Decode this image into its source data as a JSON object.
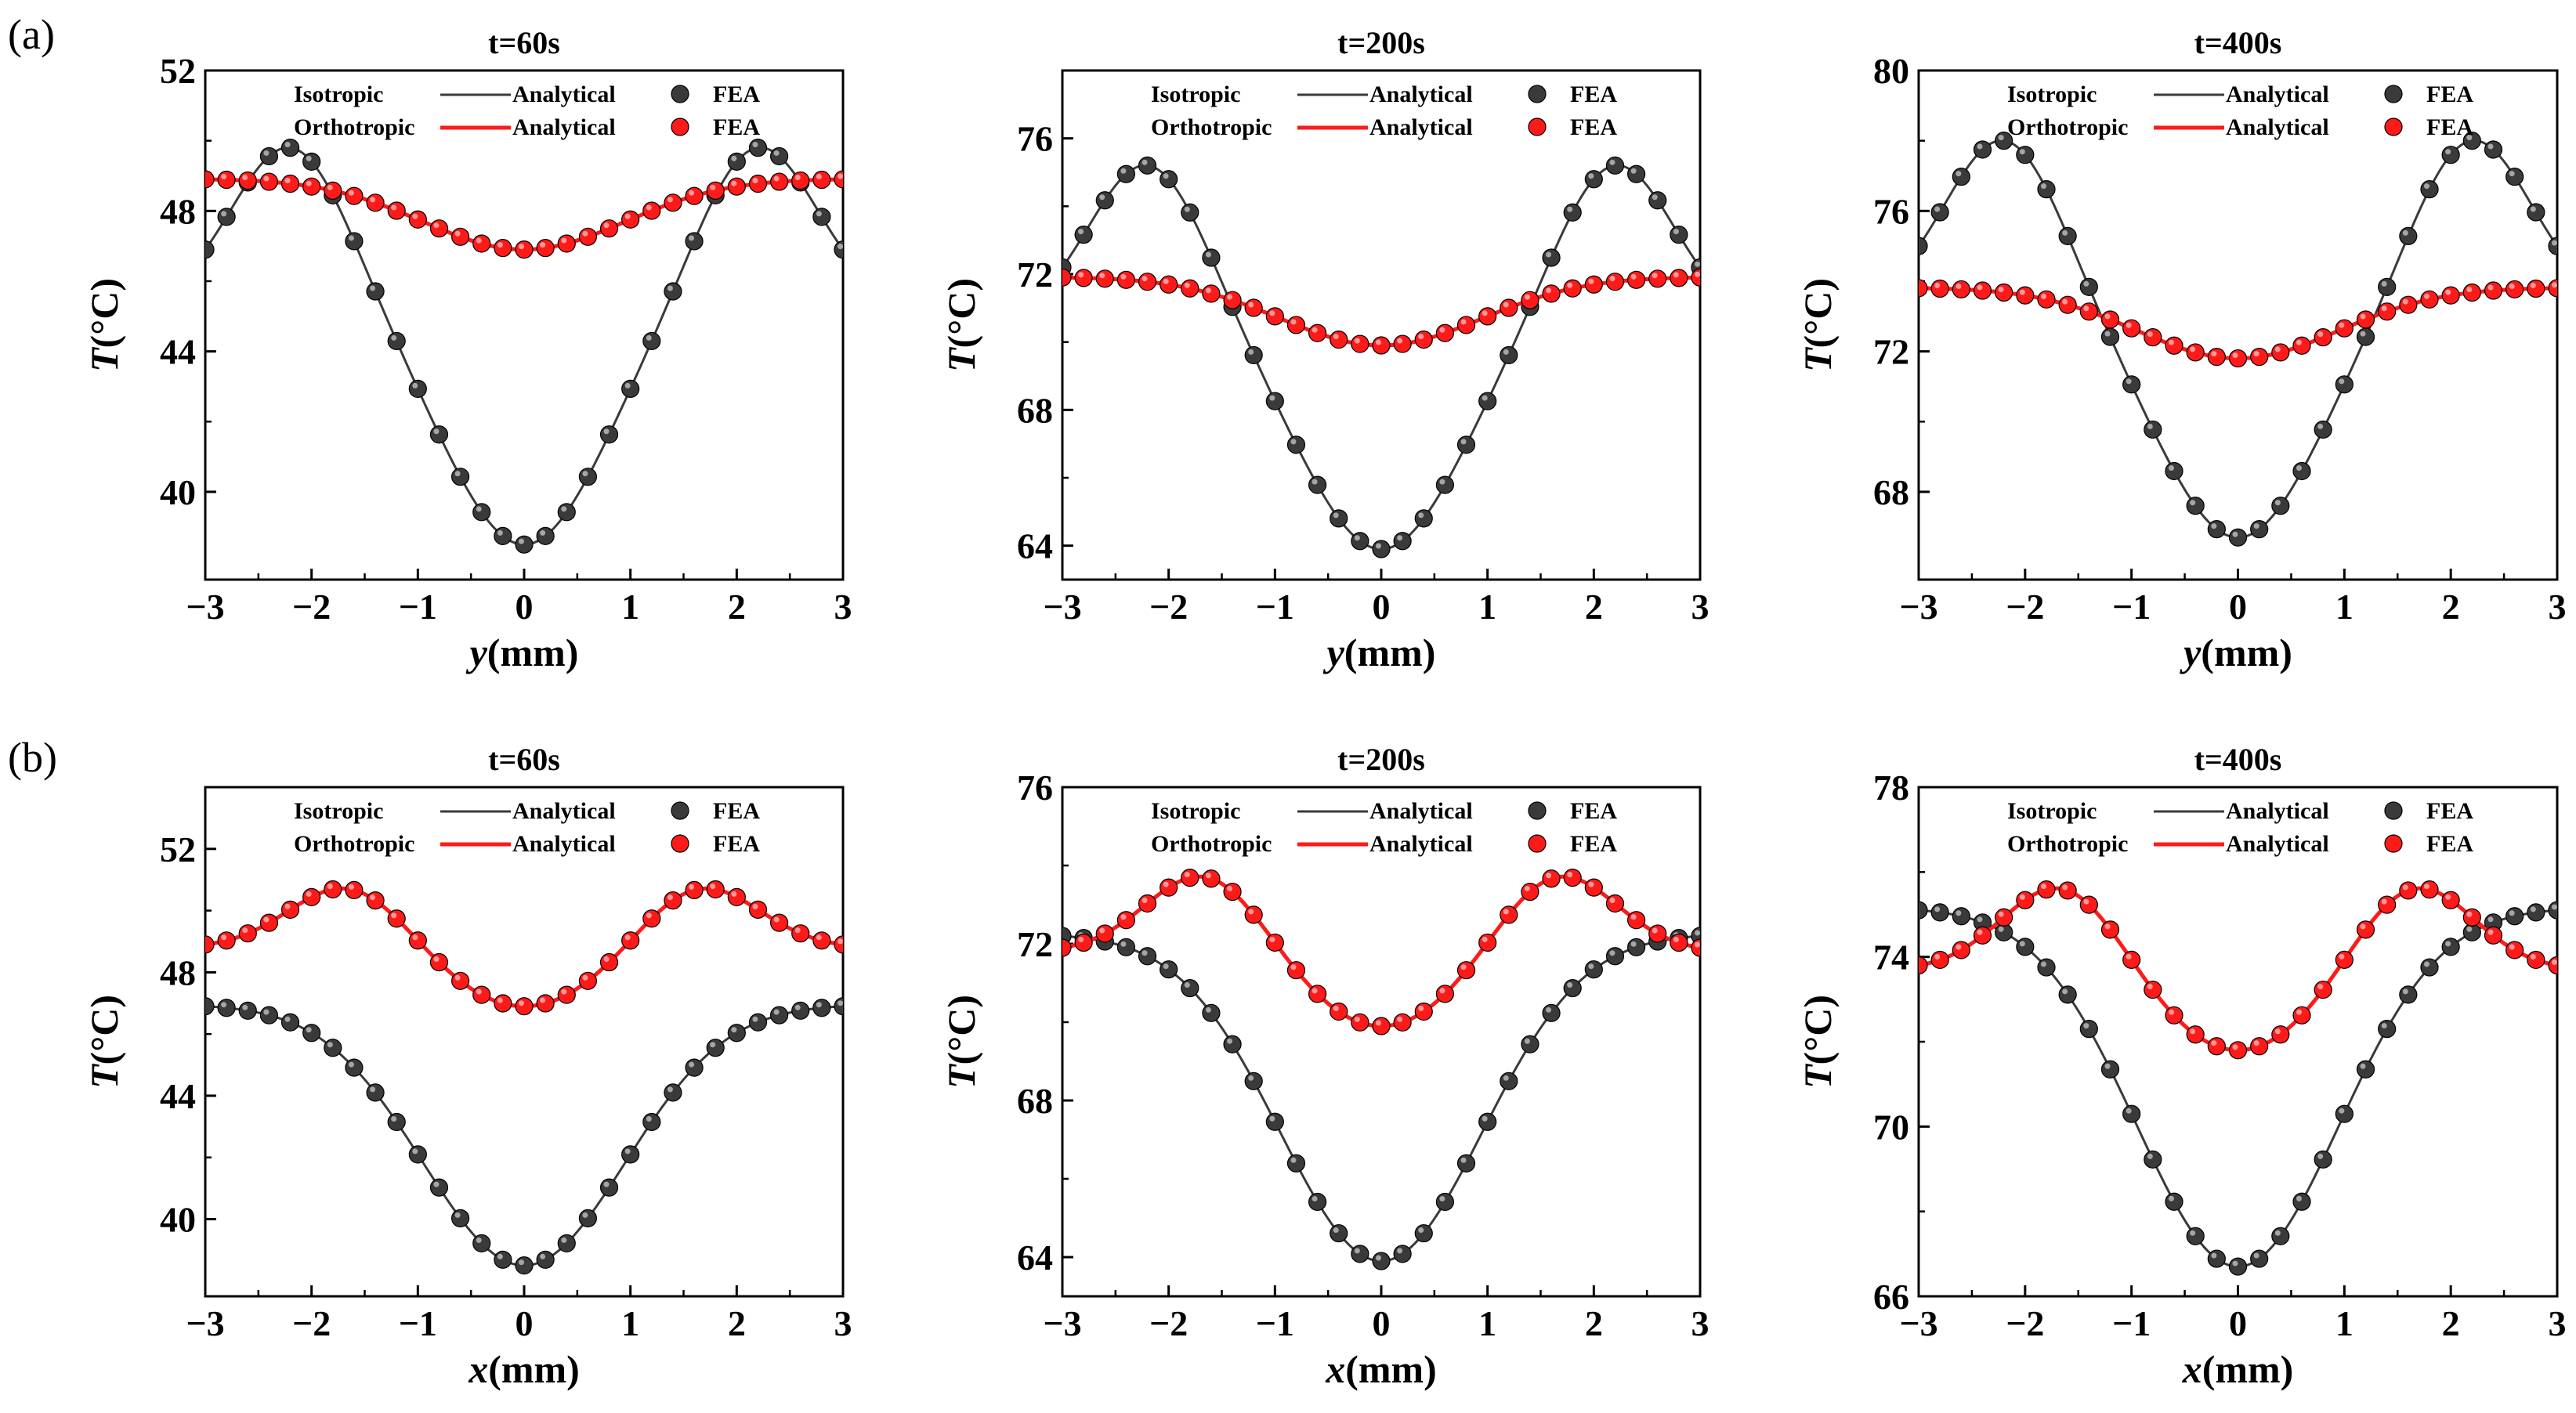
{
  "figure": {
    "panel_labels": [
      "(a)",
      "(b)"
    ],
    "colors": {
      "isotropic": "#3a3a3a",
      "orthotropic": "#ff1a1a",
      "axis": "#000000"
    }
  },
  "chart_data": [
    {
      "type": "line",
      "panel": "(a)",
      "title": "t=60s",
      "xlabel_var": "y",
      "xlabel_unit": "(mm)",
      "ylabel_var": "T",
      "ylabel_unit": "(°C)",
      "xlim": [
        -3,
        3
      ],
      "ylim": [
        37.5,
        52
      ],
      "xticks": [
        -3,
        -2,
        -1,
        0,
        1,
        2,
        3
      ],
      "yticks": [
        40,
        44,
        48,
        52
      ],
      "legend": {
        "row1_label": "Isotropic",
        "row2_label": "Orthotropic",
        "analytical": "Analytical",
        "fea": "FEA",
        "placement": "top"
      },
      "series": [
        {
          "name": "Isotropic",
          "kind": "peaked",
          "edge": 46.9,
          "peak": 49.8,
          "center": 38.5,
          "peak_pos": 2.2
        },
        {
          "name": "Orthotropic",
          "kind": "dip",
          "edge": 48.9,
          "center": 46.9
        }
      ]
    },
    {
      "type": "line",
      "panel": "(a)",
      "title": "t=200s",
      "xlabel_var": "y",
      "xlabel_unit": "(mm)",
      "ylabel_var": "T",
      "ylabel_unit": "(°C)",
      "xlim": [
        -3,
        3
      ],
      "ylim": [
        63,
        78
      ],
      "xticks": [
        -3,
        -2,
        -1,
        0,
        1,
        2,
        3
      ],
      "yticks": [
        64,
        68,
        72,
        76
      ],
      "legend": {
        "row1_label": "Isotropic",
        "row2_label": "Orthotropic",
        "analytical": "Analytical",
        "fea": "FEA",
        "placement": "top"
      },
      "series": [
        {
          "name": "Isotropic",
          "kind": "peaked",
          "edge": 72.2,
          "peak": 75.2,
          "center": 63.9,
          "peak_pos": 2.2
        },
        {
          "name": "Orthotropic",
          "kind": "dip",
          "edge": 71.9,
          "center": 69.9
        }
      ]
    },
    {
      "type": "line",
      "panel": "(a)",
      "title": "t=400s",
      "xlabel_var": "y",
      "xlabel_unit": "(mm)",
      "ylabel_var": "T",
      "ylabel_unit": "(°C)",
      "xlim": [
        -3,
        3
      ],
      "ylim": [
        65.5,
        80
      ],
      "xticks": [
        -3,
        -2,
        -1,
        0,
        1,
        2,
        3
      ],
      "yticks": [
        68,
        72,
        76,
        80
      ],
      "legend": {
        "row1_label": "Isotropic",
        "row2_label": "Orthotropic",
        "analytical": "Analytical",
        "fea": "FEA",
        "placement": "top"
      },
      "series": [
        {
          "name": "Isotropic",
          "kind": "peaked",
          "edge": 75.0,
          "peak": 78.0,
          "center": 66.7,
          "peak_pos": 2.2
        },
        {
          "name": "Orthotropic",
          "kind": "dip",
          "edge": 73.8,
          "center": 71.8
        }
      ]
    },
    {
      "type": "line",
      "panel": "(b)",
      "title": "t=60s",
      "xlabel_var": "x",
      "xlabel_unit": "(mm)",
      "ylabel_var": "T",
      "ylabel_unit": "(°C)",
      "xlim": [
        -3,
        3
      ],
      "ylim": [
        37.5,
        54
      ],
      "xticks": [
        -3,
        -2,
        -1,
        0,
        1,
        2,
        3
      ],
      "yticks": [
        40,
        44,
        48,
        52
      ],
      "legend": {
        "row1_label": "Isotropic",
        "row2_label": "Orthotropic",
        "analytical": "Analytical",
        "fea": "FEA",
        "placement": "top"
      },
      "series": [
        {
          "name": "Isotropic",
          "kind": "dip",
          "edge": 46.9,
          "center": 38.5
        },
        {
          "name": "Orthotropic",
          "kind": "peaked",
          "edge": 48.9,
          "peak": 50.7,
          "center": 46.9,
          "peak_pos": 1.65
        }
      ]
    },
    {
      "type": "line",
      "panel": "(b)",
      "title": "t=200s",
      "xlabel_var": "x",
      "xlabel_unit": "(mm)",
      "ylabel_var": "T",
      "ylabel_unit": "(°C)",
      "xlim": [
        -3,
        3
      ],
      "ylim": [
        63,
        76
      ],
      "xticks": [
        -3,
        -2,
        -1,
        0,
        1,
        2,
        3
      ],
      "yticks": [
        64,
        68,
        72,
        76
      ],
      "legend": {
        "row1_label": "Isotropic",
        "row2_label": "Orthotropic",
        "analytical": "Analytical",
        "fea": "FEA",
        "placement": "top"
      },
      "series": [
        {
          "name": "Isotropic",
          "kind": "dip",
          "edge": 72.2,
          "center": 63.9
        },
        {
          "name": "Orthotropic",
          "kind": "peaked",
          "edge": 71.9,
          "peak": 73.7,
          "center": 69.9,
          "peak_pos": 1.65
        }
      ]
    },
    {
      "type": "line",
      "panel": "(b)",
      "title": "t=400s",
      "xlabel_var": "x",
      "xlabel_unit": "(mm)",
      "ylabel_var": "T",
      "ylabel_unit": "(°C)",
      "xlim": [
        -3,
        3
      ],
      "ylim": [
        66,
        78
      ],
      "xticks": [
        -3,
        -2,
        -1,
        0,
        1,
        2,
        3
      ],
      "yticks": [
        66,
        70,
        74,
        78
      ],
      "legend": {
        "row1_label": "Isotropic",
        "row2_label": "Orthotropic",
        "analytical": "Analytical",
        "fea": "FEA",
        "placement": "top"
      },
      "series": [
        {
          "name": "Isotropic",
          "kind": "dip",
          "edge": 75.1,
          "center": 66.7
        },
        {
          "name": "Orthotropic",
          "kind": "peaked",
          "edge": 73.8,
          "peak": 75.6,
          "center": 71.8,
          "peak_pos": 1.65
        }
      ]
    }
  ]
}
